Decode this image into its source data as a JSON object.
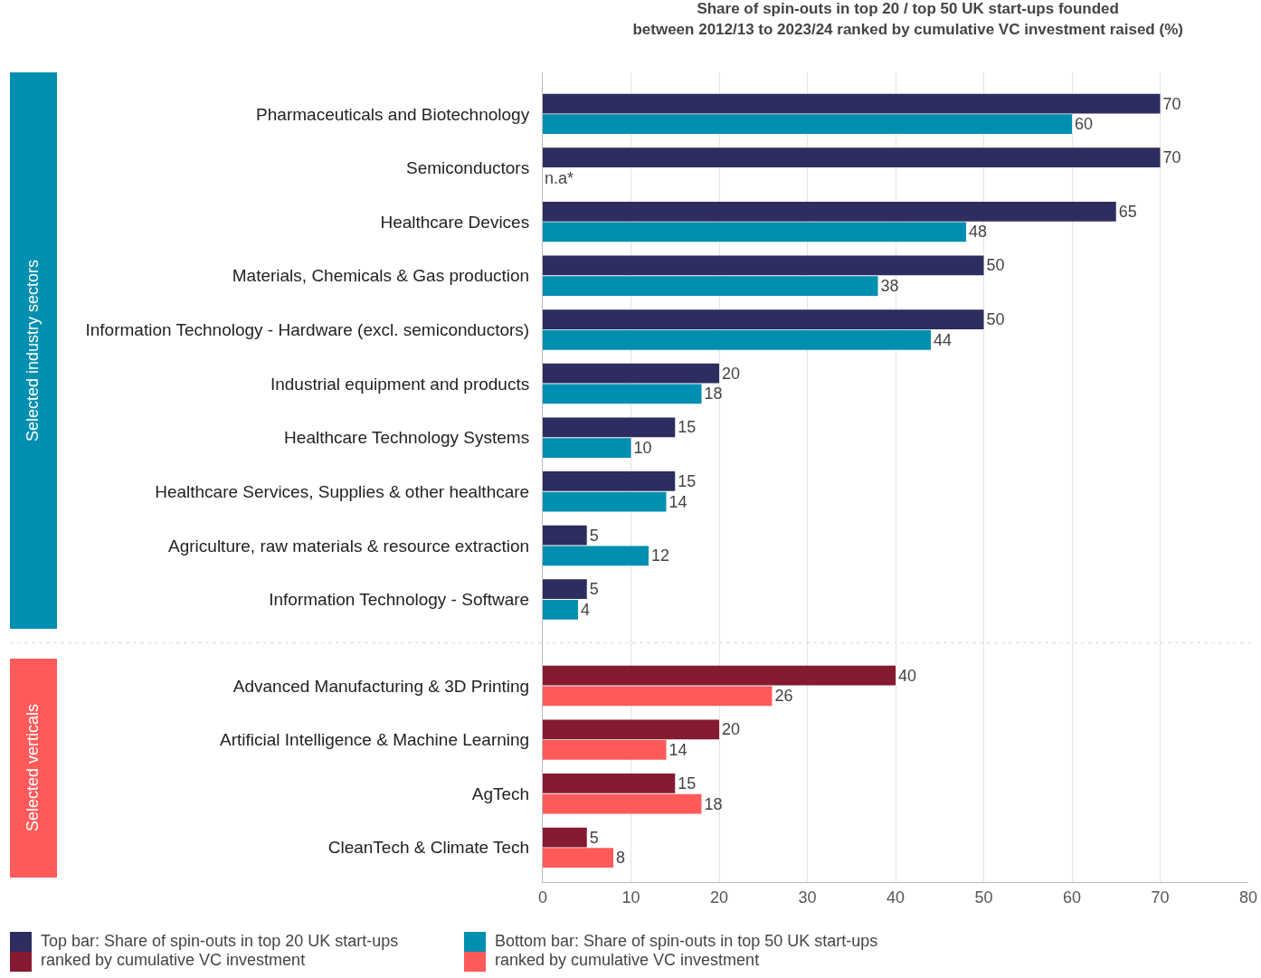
{
  "chart_data": {
    "type": "bar",
    "orientation": "horizontal",
    "title": "Share of spin-outs in top 20 / top 50 UK start-ups founded\nbetween 2012/13 to 2023/24 ranked by cumulative VC investment raised (%)",
    "categories": [
      "Pharmaceuticals and Biotechnology",
      "Semiconductors",
      "Healthcare Devices",
      "Materials, Chemicals & Gas production",
      "Information Technology - Hardware (excl. semiconductors)",
      "Industrial equipment and products",
      "Healthcare Technology Systems",
      "Healthcare Services, Supplies & other healthcare",
      "Agriculture, raw materials & resource extraction",
      "Information Technology - Software",
      "Advanced Manufacturing & 3D Printing",
      "Artificial Intelligence & Machine Learning",
      "AgTech",
      "CleanTech & Climate Tech"
    ],
    "series": [
      {
        "name": "Top bar: Share of spin-outs in top 20 UK start-ups ranked by cumulative VC investment",
        "colors": [
          "#2d2d5f",
          "#2d2d5f",
          "#2d2d5f",
          "#2d2d5f",
          "#2d2d5f",
          "#2d2d5f",
          "#2d2d5f",
          "#2d2d5f",
          "#2d2d5f",
          "#2d2d5f",
          "#861a30",
          "#861a30",
          "#861a30",
          "#861a30"
        ],
        "values": [
          70,
          70,
          65,
          50,
          50,
          20,
          15,
          15,
          5,
          5,
          40,
          20,
          15,
          5
        ],
        "value_labels": [
          "70",
          "70",
          "65",
          "50",
          "50",
          "20",
          "15",
          "15",
          "5",
          "5",
          "40",
          "20",
          "15",
          "5"
        ]
      },
      {
        "name": "Bottom bar: Share of spin-outs in top 50 UK start-ups ranked by cumulative VC investment",
        "colors": [
          "#008fb0",
          "#008fb0",
          "#008fb0",
          "#008fb0",
          "#008fb0",
          "#008fb0",
          "#008fb0",
          "#008fb0",
          "#008fb0",
          "#008fb0",
          "#ff5a5a",
          "#ff5a5a",
          "#ff5a5a",
          "#ff5a5a"
        ],
        "values": [
          60,
          null,
          48,
          38,
          44,
          18,
          10,
          14,
          12,
          4,
          26,
          14,
          18,
          8
        ],
        "value_labels": [
          "60",
          "n.a*",
          "48",
          "38",
          "44",
          "18",
          "10",
          "14",
          "12",
          "4",
          "26",
          "14",
          "18",
          "8"
        ]
      }
    ],
    "annotations": [
      "Selected industry sectors",
      "Selected verticals"
    ],
    "xlim": [
      0,
      80
    ],
    "xticks": [
      0,
      10,
      20,
      30,
      40,
      50,
      60,
      70,
      80
    ],
    "grid": "x",
    "legend": "bottom"
  }
}
